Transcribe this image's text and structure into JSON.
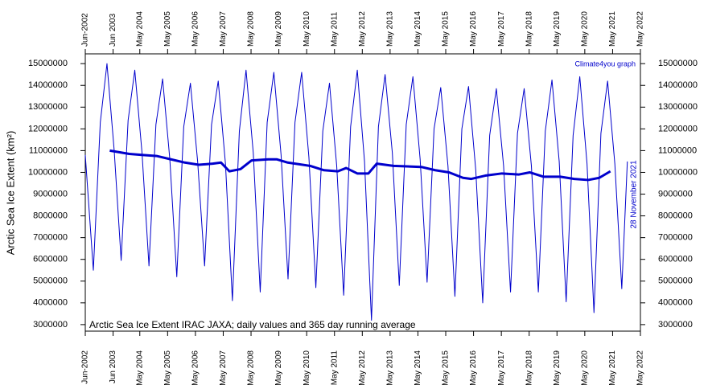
{
  "chart_data": {
    "type": "line",
    "y_label": "Arctic Sea Ice Extent (km²)",
    "credit": "Climate4you graph",
    "date_note": "28 November 2021",
    "annotation": "Arctic Sea Ice Extent IRAC JAXA; daily values and 365 day running average",
    "series": [
      {
        "color": "#0000cc",
        "x": [
          2002.42,
          2002.71,
          2002.96,
          2003.2,
          2003.46,
          2003.71,
          2003.96,
          2004.2,
          2004.46,
          2004.71,
          2004.96,
          2005.2,
          2005.46,
          2005.71,
          2005.96,
          2006.2,
          2006.46,
          2006.71,
          2006.96,
          2007.2,
          2007.46,
          2007.71,
          2007.96,
          2008.2,
          2008.46,
          2008.71,
          2008.96,
          2009.2,
          2009.46,
          2009.71,
          2009.96,
          2010.2,
          2010.46,
          2010.71,
          2010.96,
          2011.2,
          2011.46,
          2011.71,
          2011.96,
          2012.2,
          2012.46,
          2012.71,
          2012.96,
          2013.2,
          2013.46,
          2013.71,
          2013.96,
          2014.2,
          2014.46,
          2014.71,
          2014.96,
          2015.2,
          2015.46,
          2015.71,
          2015.96,
          2016.2,
          2016.46,
          2016.71,
          2016.96,
          2017.2,
          2017.46,
          2017.71,
          2017.96,
          2018.2,
          2018.46,
          2018.71,
          2018.96,
          2019.2,
          2019.46,
          2019.71,
          2019.96,
          2020.2,
          2020.46,
          2020.71,
          2020.96,
          2021.2,
          2021.46,
          2021.71,
          2021.91
        ],
        "values": [
          10800000,
          5500000,
          12300000,
          15000000,
          11000000,
          5950000,
          12400000,
          14700000,
          10900000,
          5700000,
          12200000,
          14300000,
          10600000,
          5200000,
          12100000,
          14100000,
          10500000,
          5700000,
          12200000,
          14200000,
          10400000,
          4100000,
          11900000,
          14700000,
          10900000,
          4500000,
          12300000,
          14600000,
          10800000,
          5100000,
          12300000,
          14600000,
          10700000,
          4700000,
          11900000,
          14100000,
          10300000,
          4350000,
          12100000,
          14700000,
          10500000,
          3200000,
          12100000,
          14500000,
          10900000,
          4800000,
          12200000,
          14400000,
          10600000,
          4950000,
          12000000,
          13900000,
          10300000,
          4300000,
          12000000,
          13950000,
          10100000,
          4000000,
          11700000,
          13850000,
          10300000,
          4500000,
          11800000,
          13850000,
          10300000,
          4500000,
          11900000,
          14250000,
          10500000,
          4050000,
          11700000,
          14400000,
          10400000,
          3550000,
          11800000,
          14200000,
          10400000,
          4650000,
          10500000
        ]
      },
      {
        "color": "#0000cc",
        "x": [
          2003.3,
          2004.0,
          2004.5,
          2005.0,
          2005.5,
          2006.0,
          2006.5,
          2007.0,
          2007.3,
          2007.6,
          2008.0,
          2008.4,
          2009.0,
          2009.3,
          2009.7,
          2010.5,
          2011.0,
          2011.5,
          2011.8,
          2012.2,
          2012.6,
          2012.9,
          2013.5,
          2014.5,
          2015.0,
          2015.5,
          2016.0,
          2016.3,
          2016.8,
          2017.4,
          2018.0,
          2018.4,
          2018.9,
          2019.5,
          2020.0,
          2020.5,
          2020.9,
          2021.3
        ],
        "values": [
          11000000,
          10850000,
          10800000,
          10750000,
          10600000,
          10450000,
          10350000,
          10400000,
          10450000,
          10050000,
          10150000,
          10550000,
          10600000,
          10600000,
          10450000,
          10300000,
          10100000,
          10050000,
          10200000,
          9950000,
          9950000,
          10400000,
          10300000,
          10250000,
          10100000,
          10000000,
          9750000,
          9700000,
          9850000,
          9950000,
          9900000,
          10000000,
          9800000,
          9800000,
          9700000,
          9650000,
          9750000,
          10050000
        ]
      }
    ],
    "xlim": [
      2002.42,
      2022.38
    ],
    "xticks": [
      {
        "value": 2002.42,
        "label": "Jun-2002"
      },
      {
        "value": 2003.42,
        "label": "Jun 2003"
      },
      {
        "value": 2004.38,
        "label": "May 2004"
      },
      {
        "value": 2005.38,
        "label": "May 2005"
      },
      {
        "value": 2006.38,
        "label": "May 2006"
      },
      {
        "value": 2007.38,
        "label": "May 2007"
      },
      {
        "value": 2008.38,
        "label": "May 2008"
      },
      {
        "value": 2009.38,
        "label": "May 2009"
      },
      {
        "value": 2010.38,
        "label": "May 2010"
      },
      {
        "value": 2011.38,
        "label": "May 2011"
      },
      {
        "value": 2012.38,
        "label": "May 2012"
      },
      {
        "value": 2013.38,
        "label": "May 2013"
      },
      {
        "value": 2014.38,
        "label": "May 2014"
      },
      {
        "value": 2015.38,
        "label": "May 2015"
      },
      {
        "value": 2016.38,
        "label": "May 2016"
      },
      {
        "value": 2017.38,
        "label": "May 2017"
      },
      {
        "value": 2018.38,
        "label": "May 2018"
      },
      {
        "value": 2019.38,
        "label": "May 2019"
      },
      {
        "value": 2020.38,
        "label": "May 2020"
      },
      {
        "value": 2021.38,
        "label": "May 2021"
      },
      {
        "value": 2022.38,
        "label": "May 2022"
      }
    ],
    "ylim": [
      2700000,
      15450000
    ],
    "yticks": [
      3000000,
      4000000,
      5000000,
      6000000,
      7000000,
      8000000,
      9000000,
      10000000,
      11000000,
      12000000,
      13000000,
      14000000,
      15000000
    ],
    "y2lim": [
      2700000,
      15450000
    ],
    "y2ticks": [
      3000000,
      4000000,
      5000000,
      6000000,
      7000000,
      8000000,
      9000000,
      10000000,
      11000000,
      12000000,
      13000000,
      14000000,
      15000000
    ]
  }
}
